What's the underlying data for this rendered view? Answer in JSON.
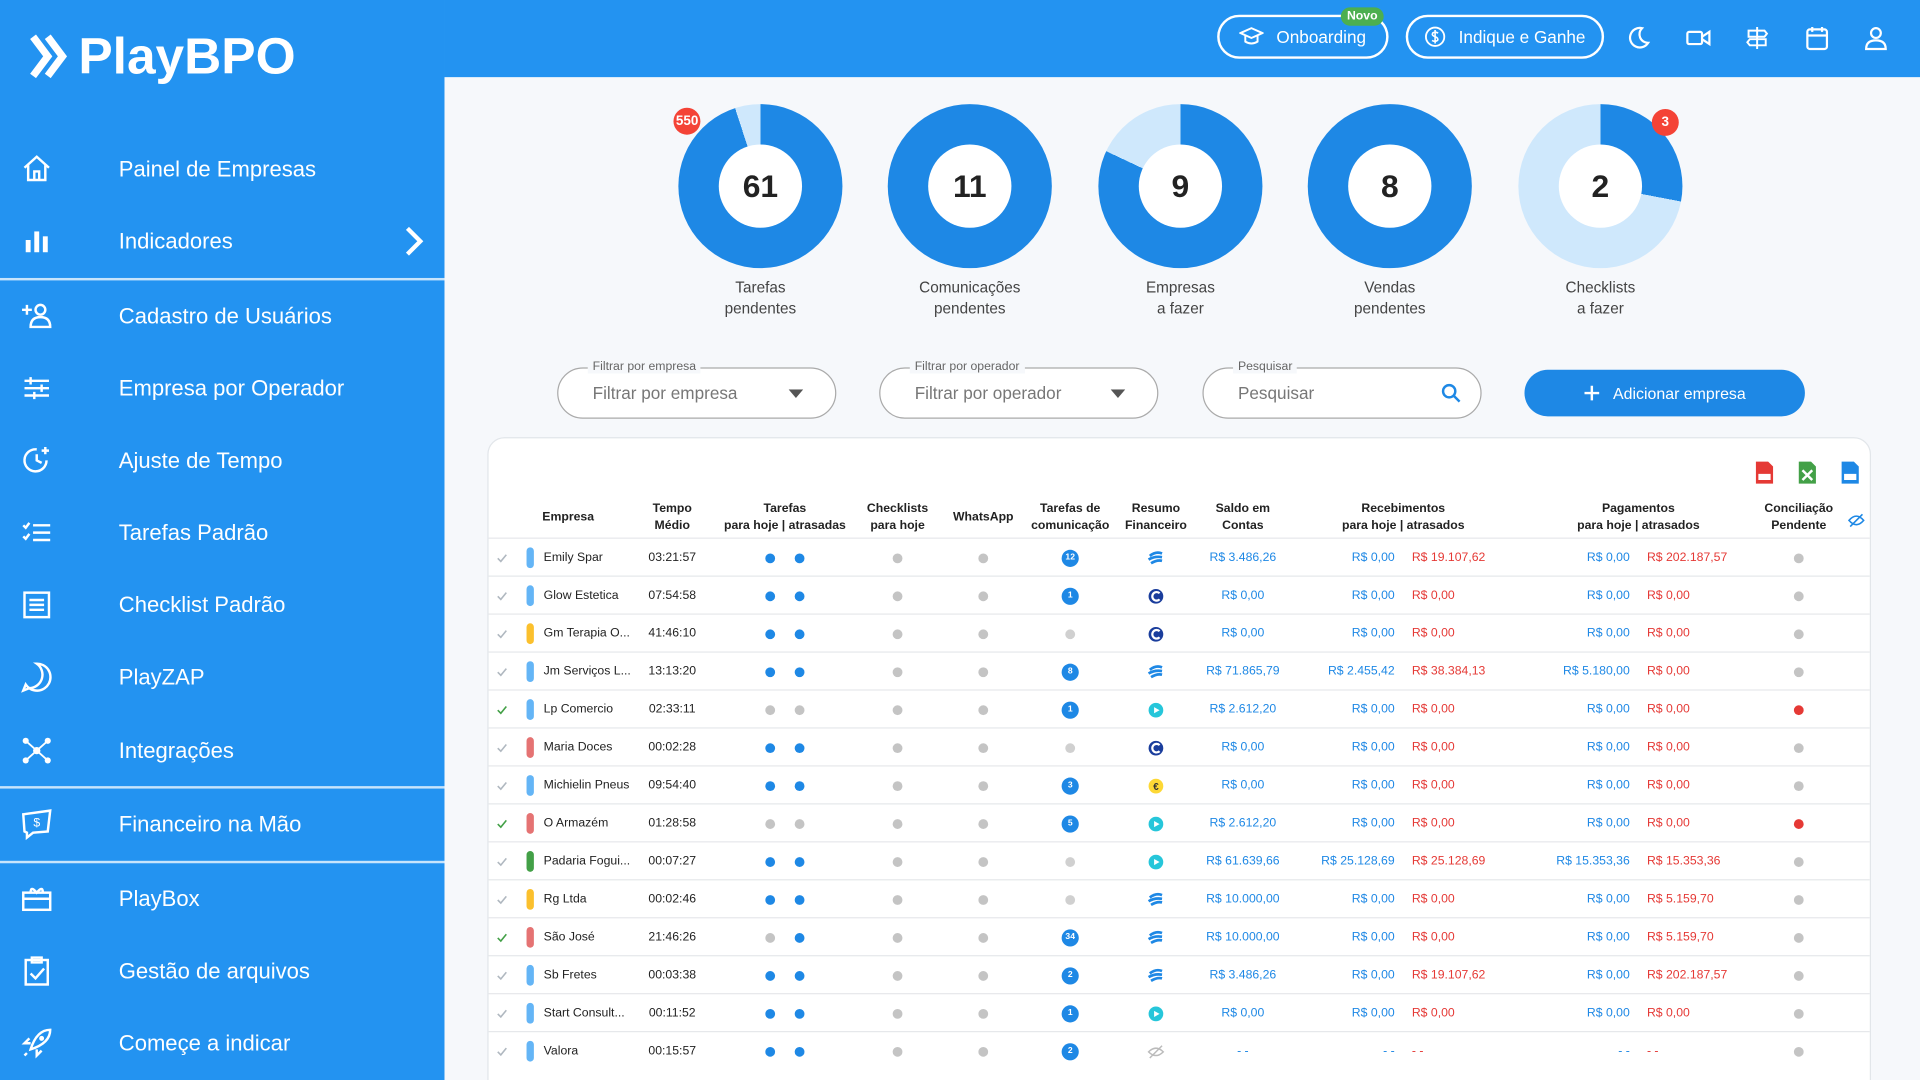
{
  "brand": "PlayBPO",
  "sidebar": {
    "items": [
      "Painel de Empresas",
      "Indicadores",
      "Cadastro de Usuários",
      "Empresa por Operador",
      "Ajuste de Tempo",
      "Tarefas Padrão",
      "Checklist Padrão",
      "PlayZAP",
      "Integrações",
      "Financeiro na Mão",
      "PlayBox",
      "Gestão de arquivos",
      "Começe a indicar"
    ]
  },
  "header": {
    "onboarding": "Onboarding",
    "badge": "Novo",
    "indique": "Indique e Ganhe"
  },
  "summary": [
    {
      "value": 61,
      "label": [
        "Tarefas",
        "pendentes"
      ],
      "badge": 550
    },
    {
      "value": 11,
      "label": [
        "Comunicações",
        "pendentes"
      ]
    },
    {
      "value": 9,
      "label": [
        "Empresas",
        "a fazer"
      ]
    },
    {
      "value": 8,
      "label": [
        "Vendas",
        "pendentes"
      ]
    },
    {
      "value": 2,
      "label": [
        "Checklists",
        "a fazer"
      ],
      "badge": 3
    }
  ],
  "filters": [
    {
      "legend": "Filtrar por empresa",
      "placeholder": "Filtrar por empresa"
    },
    {
      "legend": "Filtrar por operador",
      "placeholder": "Filtrar por operador"
    },
    {
      "legend": "Pesquisar",
      "placeholder": "Pesquisar"
    }
  ],
  "add_button": "Adicionar empresa",
  "table": {
    "columns": [
      [
        "Empresa"
      ],
      [
        "Tempo",
        "Médio"
      ],
      [
        "Tarefas",
        "para hoje | atrasadas"
      ],
      [
        "Checklists",
        "para hoje"
      ],
      [
        "WhatsApp"
      ],
      [
        "Tarefas de",
        "comunicação"
      ],
      [
        "Resumo",
        "Financeiro"
      ],
      [
        "Saldo em",
        "Contas"
      ],
      [
        "Recebimentos",
        "para hoje | atrasados"
      ],
      [
        "Pagamentos",
        "para hoje | atrasados"
      ],
      [
        "Conciliação",
        "Pendente"
      ]
    ],
    "rows": [
      {
        "check": "#b0b8c0",
        "color": "#64b5f6",
        "empresa": "Emily Spar",
        "tempo": "03:21:57",
        "tarefas": [
          "#1e88e5",
          "#1e88e5"
        ],
        "comunicacao": 12,
        "resumo": "wave",
        "saldo": "R$ 3.486,26",
        "recebimentos": [
          "R$ 0,00",
          "R$ 19.107,62"
        ],
        "pagamentos": [
          "R$ 0,00",
          "R$ 202.187,57"
        ],
        "conciliacao": "#c4c4c4"
      },
      {
        "check": "#b0b8c0",
        "color": "#64b5f6",
        "empresa": "Glow Estetica",
        "tempo": "07:54:58",
        "tarefas": [
          "#1e88e5",
          "#1e88e5"
        ],
        "comunicacao": 1,
        "resumo": "c",
        "saldo": "R$ 0,00",
        "recebimentos": [
          "R$ 0,00",
          "R$ 0,00"
        ],
        "pagamentos": [
          "R$ 0,00",
          "R$ 0,00"
        ],
        "conciliacao": "#c4c4c4"
      },
      {
        "check": "#b0b8c0",
        "color": "#fbc02d",
        "empresa": "Gm Terapia O...",
        "tempo": "41:46:10",
        "tarefas": [
          "#1e88e5",
          "#1e88e5"
        ],
        "comunicacao": null,
        "resumo": "c",
        "saldo": "R$ 0,00",
        "recebimentos": [
          "R$ 0,00",
          "R$ 0,00"
        ],
        "pagamentos": [
          "R$ 0,00",
          "R$ 0,00"
        ],
        "conciliacao": "#c4c4c4"
      },
      {
        "check": "#b0b8c0",
        "color": "#64b5f6",
        "empresa": "Jm Serviços L...",
        "tempo": "13:13:20",
        "tarefas": [
          "#1e88e5",
          "#1e88e5"
        ],
        "comunicacao": 8,
        "resumo": "wave",
        "saldo": "R$ 71.865,79",
        "recebimentos": [
          "R$ 2.455,42",
          "R$ 38.384,13"
        ],
        "pagamentos": [
          "R$ 5.180,00",
          "R$ 0,00"
        ],
        "conciliacao": "#c4c4c4"
      },
      {
        "check": "#43a047",
        "color": "#64b5f6",
        "empresa": "Lp Comercio",
        "tempo": "02:33:11",
        "tarefas": [
          "#c4c4c4",
          "#c4c4c4"
        ],
        "comunicacao": 1,
        "resumo": "play",
        "saldo": "R$ 2.612,20",
        "recebimentos": [
          "R$ 0,00",
          "R$ 0,00"
        ],
        "pagamentos": [
          "R$ 0,00",
          "R$ 0,00"
        ],
        "conciliacao": "#e53935"
      },
      {
        "check": "#b0b8c0",
        "color": "#e57373",
        "empresa": "Maria Doces",
        "tempo": "00:02:28",
        "tarefas": [
          "#1e88e5",
          "#1e88e5"
        ],
        "comunicacao": null,
        "resumo": "c",
        "saldo": "R$ 0,00",
        "recebimentos": [
          "R$ 0,00",
          "R$ 0,00"
        ],
        "pagamentos": [
          "R$ 0,00",
          "R$ 0,00"
        ],
        "conciliacao": "#c4c4c4"
      },
      {
        "check": "#b0b8c0",
        "color": "#64b5f6",
        "empresa": "Michielin Pneus",
        "tempo": "09:54:40",
        "tarefas": [
          "#1e88e5",
          "#1e88e5"
        ],
        "comunicacao": 3,
        "resumo": "coin",
        "saldo": "R$ 0,00",
        "recebimentos": [
          "R$ 0,00",
          "R$ 0,00"
        ],
        "pagamentos": [
          "R$ 0,00",
          "R$ 0,00"
        ],
        "conciliacao": "#c4c4c4"
      },
      {
        "check": "#43a047",
        "color": "#e57373",
        "empresa": "O Armazém",
        "tempo": "01:28:58",
        "tarefas": [
          "#c4c4c4",
          "#c4c4c4"
        ],
        "comunicacao": 5,
        "resumo": "play",
        "saldo": "R$ 2.612,20",
        "recebimentos": [
          "R$ 0,00",
          "R$ 0,00"
        ],
        "pagamentos": [
          "R$ 0,00",
          "R$ 0,00"
        ],
        "conciliacao": "#e53935"
      },
      {
        "check": "#b0b8c0",
        "color": "#43a047",
        "empresa": "Padaria Fogui...",
        "tempo": "00:07:27",
        "tarefas": [
          "#1e88e5",
          "#1e88e5"
        ],
        "comunicacao": null,
        "resumo": "play",
        "saldo": "R$ 61.639,66",
        "recebimentos": [
          "R$ 25.128,69",
          "R$ 25.128,69"
        ],
        "pagamentos": [
          "R$ 15.353,36",
          "R$ 15.353,36"
        ],
        "conciliacao": "#c4c4c4"
      },
      {
        "check": "#b0b8c0",
        "color": "#fbc02d",
        "empresa": "Rg Ltda",
        "tempo": "00:02:46",
        "tarefas": [
          "#1e88e5",
          "#1e88e5"
        ],
        "comunicacao": null,
        "resumo": "wave",
        "saldo": "R$ 10.000,00",
        "recebimentos": [
          "R$ 0,00",
          "R$ 0,00"
        ],
        "pagamentos": [
          "R$ 0,00",
          "R$ 5.159,70"
        ],
        "conciliacao": "#c4c4c4"
      },
      {
        "check": "#43a047",
        "color": "#e57373",
        "empresa": "São José",
        "tempo": "21:46:26",
        "tarefas": [
          "#c4c4c4",
          "#1e88e5"
        ],
        "comunicacao": 34,
        "resumo": "wave",
        "saldo": "R$ 10.000,00",
        "recebimentos": [
          "R$ 0,00",
          "R$ 0,00"
        ],
        "pagamentos": [
          "R$ 0,00",
          "R$ 5.159,70"
        ],
        "conciliacao": "#c4c4c4"
      },
      {
        "check": "#b0b8c0",
        "color": "#64b5f6",
        "empresa": "Sb Fretes",
        "tempo": "00:03:38",
        "tarefas": [
          "#1e88e5",
          "#1e88e5"
        ],
        "comunicacao": 2,
        "resumo": "wave",
        "saldo": "R$ 3.486,26",
        "recebimentos": [
          "R$ 0,00",
          "R$ 19.107,62"
        ],
        "pagamentos": [
          "R$ 0,00",
          "R$ 202.187,57"
        ],
        "conciliacao": "#c4c4c4"
      },
      {
        "check": "#b0b8c0",
        "color": "#64b5f6",
        "empresa": "Start Consult...",
        "tempo": "00:11:52",
        "tarefas": [
          "#1e88e5",
          "#1e88e5"
        ],
        "comunicacao": 1,
        "resumo": "play",
        "saldo": "R$ 0,00",
        "recebimentos": [
          "R$ 0,00",
          "R$ 0,00"
        ],
        "pagamentos": [
          "R$ 0,00",
          "R$ 0,00"
        ],
        "conciliacao": "#c4c4c4"
      },
      {
        "check": "#b0b8c0",
        "color": "#64b5f6",
        "empresa": "Valora",
        "tempo": "00:15:57",
        "tarefas": [
          "#1e88e5",
          "#1e88e5"
        ],
        "comunicacao": 2,
        "resumo": "off",
        "saldo": "- -",
        "recebimentos": [
          "- -",
          "- -"
        ],
        "pagamentos": [
          "- -",
          "- -"
        ],
        "conciliacao": "#c4c4c4"
      }
    ]
  }
}
